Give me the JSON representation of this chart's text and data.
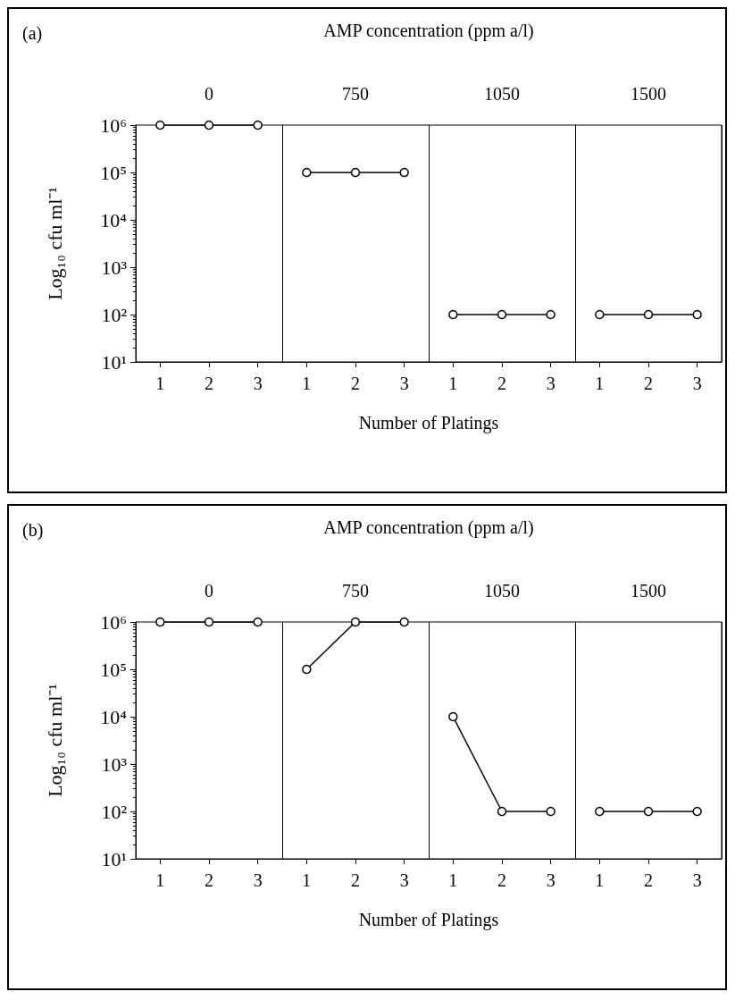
{
  "chart_data": [
    {
      "type": "line",
      "title": "(a)",
      "legend_title": "AMP concentration (ppm a/l)",
      "annotations": [
        "0",
        "750",
        "1050",
        "1500"
      ],
      "xlabel": "Number of Platings",
      "ylabel": "Log₁₀ cfu ml⁻¹",
      "categories": [
        "1",
        "2",
        "3",
        "1",
        "2",
        "3",
        "1",
        "2",
        "3",
        "1",
        "2",
        "3"
      ],
      "series": [
        {
          "color": "#000000",
          "values": [
            1000000,
            1000000,
            1000000,
            null,
            null,
            null,
            null,
            null,
            null,
            null,
            null,
            null
          ]
        },
        {
          "color": "#000000",
          "values": [
            null,
            null,
            null,
            100000,
            100000,
            100000,
            null,
            null,
            null,
            null,
            null,
            null
          ]
        },
        {
          "color": "#000000",
          "values": [
            null,
            null,
            null,
            null,
            null,
            null,
            100,
            100,
            100,
            null,
            null,
            null
          ]
        },
        {
          "color": "#000000",
          "values": [
            null,
            null,
            null,
            null,
            null,
            null,
            null,
            null,
            null,
            100,
            100,
            100
          ]
        }
      ],
      "ylim": [
        10,
        1000000
      ],
      "yticks": [
        {
          "value": 10,
          "label": "10¹"
        },
        {
          "value": 100,
          "label": "10²"
        },
        {
          "value": 1000,
          "label": "10³"
        },
        {
          "value": 10000,
          "label": "10⁴"
        },
        {
          "value": 100000,
          "label": "10⁵"
        },
        {
          "value": 1000000,
          "label": "10⁶"
        }
      ],
      "log": true,
      "marker": "circle",
      "line_style": "solid",
      "grid": "x"
    },
    {
      "type": "line",
      "title": "(b)",
      "legend_title": "AMP concentration (ppm a/l)",
      "annotations": [
        "0",
        "750",
        "1050",
        "1500"
      ],
      "xlabel": "Number of Platings",
      "ylabel": "Log₁₀ cfu ml⁻¹",
      "categories": [
        "1",
        "2",
        "3",
        "1",
        "2",
        "3",
        "1",
        "2",
        "3",
        "1",
        "2",
        "3"
      ],
      "series": [
        {
          "color": "#000000",
          "values": [
            1000000,
            1000000,
            1000000,
            null,
            null,
            null,
            null,
            null,
            null,
            null,
            null,
            null
          ]
        },
        {
          "color": "#000000",
          "values": [
            null,
            null,
            null,
            100000,
            1000000,
            1000000,
            null,
            null,
            null,
            null,
            null,
            null
          ]
        },
        {
          "color": "#000000",
          "values": [
            null,
            null,
            null,
            null,
            null,
            null,
            10000,
            100,
            100,
            null,
            null,
            null
          ]
        },
        {
          "color": "#000000",
          "values": [
            null,
            null,
            null,
            null,
            null,
            null,
            null,
            null,
            null,
            100,
            100,
            100
          ]
        }
      ],
      "ylim": [
        10,
        1000000
      ],
      "yticks": [
        {
          "value": 10,
          "label": "10¹"
        },
        {
          "value": 100,
          "label": "10²"
        },
        {
          "value": 1000,
          "label": "10³"
        },
        {
          "value": 10000,
          "label": "10⁴"
        },
        {
          "value": 100000,
          "label": "10⁵"
        },
        {
          "value": 1000000,
          "label": "10⁶"
        }
      ],
      "log": true,
      "marker": "circle",
      "line_style": "solid",
      "grid": "x"
    }
  ]
}
